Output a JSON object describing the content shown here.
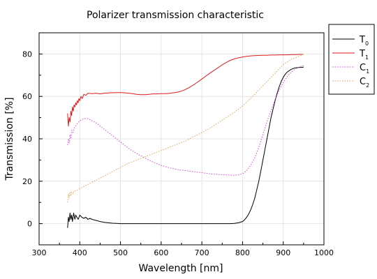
{
  "chart_data": {
    "type": "line",
    "title": "Polarizer transmission characteristic",
    "xlabel": "Wavelength [nm]",
    "ylabel": "Transmission [%]",
    "xlim": [
      300,
      1000
    ],
    "ylim": [
      -10,
      90
    ],
    "xticks": [
      300,
      400,
      500,
      600,
      700,
      800,
      900,
      1000
    ],
    "yticks": [
      0,
      20,
      40,
      60,
      80
    ],
    "grid": true,
    "legend_position": "outside-top-right",
    "series": [
      {
        "name": "T",
        "subscript": "0",
        "color": "#000000",
        "dash": "solid",
        "x": [
          370,
          372,
          374,
          376,
          378,
          380,
          382,
          385,
          388,
          390,
          393,
          396,
          400,
          405,
          410,
          415,
          420,
          425,
          430,
          440,
          450,
          460,
          470,
          480,
          490,
          500,
          550,
          600,
          650,
          700,
          750,
          770,
          780,
          790,
          800,
          805,
          810,
          815,
          820,
          825,
          830,
          835,
          840,
          845,
          850,
          855,
          860,
          865,
          870,
          875,
          880,
          885,
          890,
          895,
          900,
          905,
          910,
          915,
          920,
          925,
          930,
          935,
          940,
          945,
          950
        ],
        "y": [
          -2,
          3,
          1,
          5,
          2,
          4,
          1,
          5,
          2,
          4,
          3,
          2,
          4,
          3,
          2.5,
          3,
          2,
          2.5,
          2,
          1.5,
          1,
          0.6,
          0.4,
          0.2,
          0.1,
          0,
          0,
          0,
          0,
          0,
          0,
          0,
          0.1,
          0.4,
          1,
          1.8,
          3,
          4.5,
          6.5,
          9,
          12,
          16,
          20,
          25,
          30,
          35,
          40,
          45,
          50,
          54,
          58,
          61.5,
          64.5,
          67,
          69,
          70.5,
          71.5,
          72.2,
          72.8,
          73.2,
          73.5,
          73.6,
          73.7,
          73.7,
          73.8
        ]
      },
      {
        "name": "T",
        "subscript": "1",
        "color": "#e31a1c",
        "dash": "solid",
        "x": [
          370,
          372,
          374,
          376,
          378,
          380,
          382,
          384,
          386,
          388,
          390,
          392,
          394,
          396,
          398,
          400,
          403,
          406,
          410,
          415,
          420,
          430,
          440,
          450,
          460,
          470,
          480,
          490,
          500,
          510,
          520,
          530,
          540,
          550,
          560,
          570,
          580,
          590,
          600,
          610,
          620,
          630,
          640,
          650,
          660,
          670,
          680,
          690,
          700,
          710,
          720,
          730,
          740,
          750,
          760,
          770,
          780,
          790,
          800,
          810,
          820,
          830,
          840,
          850,
          860,
          870,
          880,
          890,
          900,
          910,
          920,
          930,
          940,
          950
        ],
        "y": [
          52,
          46,
          50,
          48,
          53,
          51,
          55,
          53,
          56,
          55,
          57,
          56,
          58,
          57,
          59,
          58,
          60,
          59,
          61,
          60.5,
          61.5,
          61.3,
          61.5,
          61.2,
          61.5,
          61.6,
          61.7,
          61.8,
          61.8,
          61.7,
          61.5,
          61.3,
          61,
          60.8,
          60.8,
          61,
          61.2,
          61.2,
          61.3,
          61.3,
          61.4,
          61.7,
          62,
          62.5,
          63.3,
          64.3,
          65.5,
          66.8,
          68.2,
          69.6,
          71,
          72.3,
          73.6,
          74.9,
          76,
          77,
          77.7,
          78.2,
          78.6,
          78.9,
          79.1,
          79.2,
          79.3,
          79.4,
          79.4,
          79.5,
          79.5,
          79.6,
          79.6,
          79.6,
          79.7,
          79.7,
          79.8,
          79.8
        ]
      },
      {
        "name": "C",
        "subscript": "1",
        "color": "#e040e0",
        "dash": "dotted",
        "x": [
          370,
          372,
          374,
          376,
          378,
          380,
          383,
          386,
          390,
          395,
          400,
          410,
          420,
          430,
          440,
          450,
          460,
          480,
          500,
          520,
          540,
          560,
          580,
          600,
          620,
          640,
          660,
          680,
          700,
          720,
          740,
          760,
          780,
          790,
          800,
          810,
          820,
          830,
          840,
          850,
          860,
          870,
          880,
          890,
          900,
          910,
          920,
          930,
          940,
          950
        ],
        "y": [
          37,
          40,
          38,
          42,
          40,
          44,
          43,
          45,
          46,
          47.5,
          48.5,
          49.5,
          49.5,
          48.5,
          47.5,
          46,
          44.5,
          41.5,
          38.5,
          35.5,
          33,
          31,
          29,
          27.5,
          26.3,
          25.5,
          25,
          24.5,
          24,
          23.5,
          23.2,
          23,
          22.8,
          23,
          23.5,
          25,
          27.5,
          31,
          36,
          42,
          48,
          53.5,
          58.5,
          63,
          66.5,
          69.5,
          71.5,
          73,
          74,
          74.5
        ]
      },
      {
        "name": "C",
        "subscript": "2",
        "color": "#e8a050",
        "dash": "dotted",
        "x": [
          370,
          372,
          374,
          376,
          378,
          380,
          383,
          386,
          390,
          395,
          400,
          410,
          420,
          440,
          460,
          480,
          500,
          520,
          540,
          560,
          580,
          600,
          620,
          640,
          660,
          680,
          700,
          720,
          740,
          760,
          780,
          800,
          820,
          840,
          860,
          880,
          900,
          920,
          940,
          950
        ],
        "y": [
          10,
          14,
          12,
          15,
          13,
          15,
          14,
          15.5,
          15.5,
          16,
          16.5,
          17.5,
          18.5,
          20.5,
          22.5,
          24.5,
          26.5,
          28.5,
          30,
          31.5,
          33,
          34.5,
          36,
          37.5,
          39,
          41,
          43,
          45,
          47.5,
          50,
          52.5,
          55.5,
          59,
          63,
          67,
          71,
          75,
          77.5,
          79,
          80
        ]
      }
    ]
  }
}
